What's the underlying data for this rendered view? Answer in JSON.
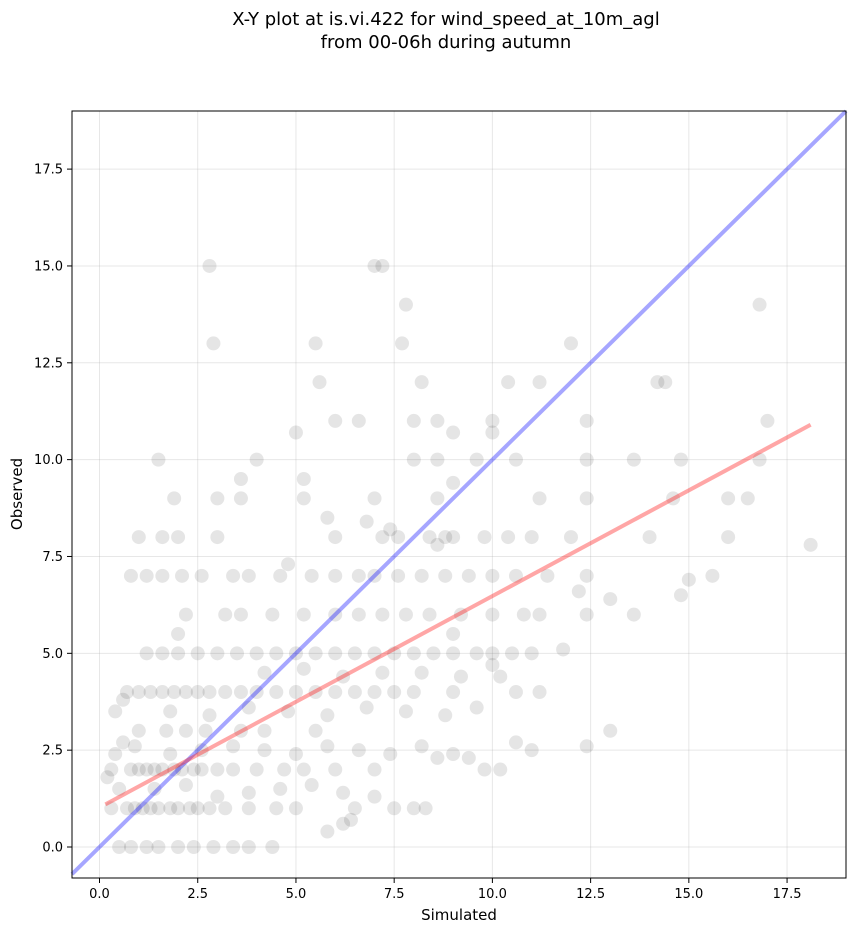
{
  "chart_data": {
    "type": "scatter",
    "title_lines": [
      "X-Y plot at is.vi.422 for wind_speed_at_10m_agl",
      "from 00-06h during autumn"
    ],
    "xlabel": "Simulated",
    "ylabel": "Observed",
    "xlim": [
      -0.7,
      19.0
    ],
    "ylim": [
      -0.8,
      19.0
    ],
    "xticks": [
      0.0,
      2.5,
      5.0,
      7.5,
      10.0,
      12.5,
      15.0,
      17.5
    ],
    "yticks": [
      0.0,
      2.5,
      5.0,
      7.5,
      10.0,
      12.5,
      15.0,
      17.5
    ],
    "xtick_labels": [
      "0.0",
      "2.5",
      "5.0",
      "7.5",
      "10.0",
      "12.5",
      "15.0",
      "17.5"
    ],
    "ytick_labels": [
      "0.0",
      "2.5",
      "5.0",
      "7.5",
      "10.0",
      "12.5",
      "15.0",
      "17.5"
    ],
    "grid": true,
    "point_color": "#000000",
    "point_alpha": 0.1,
    "reference_line": {
      "color": "#0000ff",
      "alpha": 0.35,
      "x": [
        -0.7,
        19.0
      ],
      "y": [
        -0.7,
        19.0
      ]
    },
    "regression_line": {
      "color": "#ff0000",
      "alpha": 0.35,
      "x": [
        0.15,
        18.1
      ],
      "y": [
        1.1,
        10.9
      ]
    },
    "points": [
      [
        0.2,
        1.8
      ],
      [
        0.3,
        1.0
      ],
      [
        0.3,
        2.0
      ],
      [
        0.4,
        3.5
      ],
      [
        0.4,
        2.4
      ],
      [
        0.5,
        1.5
      ],
      [
        0.5,
        0.0
      ],
      [
        0.6,
        3.8
      ],
      [
        0.6,
        2.7
      ],
      [
        0.7,
        1.0
      ],
      [
        0.8,
        2.0
      ],
      [
        0.9,
        1.0
      ],
      [
        1.0,
        2.0
      ],
      [
        1.0,
        3.0
      ],
      [
        1.1,
        1.0
      ],
      [
        1.2,
        2.0
      ],
      [
        1.3,
        1.0
      ],
      [
        1.4,
        2.0
      ],
      [
        1.5,
        1.0
      ],
      [
        1.6,
        2.0
      ],
      [
        1.7,
        3.0
      ],
      [
        1.8,
        1.0
      ],
      [
        1.9,
        2.0
      ],
      [
        2.0,
        1.0
      ],
      [
        2.1,
        2.0
      ],
      [
        2.2,
        3.0
      ],
      [
        2.3,
        1.0
      ],
      [
        2.4,
        2.0
      ],
      [
        2.5,
        1.0
      ],
      [
        2.6,
        2.0
      ],
      [
        2.7,
        3.0
      ],
      [
        2.8,
        1.0
      ],
      [
        3.0,
        2.0
      ],
      [
        3.2,
        1.0
      ],
      [
        3.4,
        2.0
      ],
      [
        3.6,
        3.0
      ],
      [
        3.8,
        1.0
      ],
      [
        4.0,
        2.0
      ],
      [
        4.2,
        3.0
      ],
      [
        4.5,
        1.0
      ],
      [
        4.7,
        2.0
      ],
      [
        5.0,
        1.0
      ],
      [
        5.2,
        2.0
      ],
      [
        5.5,
        3.0
      ],
      [
        6.0,
        2.0
      ],
      [
        6.5,
        1.0
      ],
      [
        7.0,
        2.0
      ],
      [
        7.5,
        1.0
      ],
      [
        8.0,
        1.0
      ],
      [
        8.3,
        1.0
      ],
      [
        0.7,
        4.0
      ],
      [
        1.0,
        4.0
      ],
      [
        1.3,
        4.0
      ],
      [
        1.6,
        4.0
      ],
      [
        1.9,
        4.0
      ],
      [
        2.2,
        4.0
      ],
      [
        2.5,
        4.0
      ],
      [
        2.8,
        4.0
      ],
      [
        3.2,
        4.0
      ],
      [
        3.6,
        4.0
      ],
      [
        4.0,
        4.0
      ],
      [
        4.5,
        4.0
      ],
      [
        5.0,
        4.0
      ],
      [
        5.5,
        4.0
      ],
      [
        6.0,
        4.0
      ],
      [
        6.5,
        4.0
      ],
      [
        7.0,
        4.0
      ],
      [
        7.5,
        4.0
      ],
      [
        8.0,
        4.0
      ],
      [
        9.0,
        4.0
      ],
      [
        1.2,
        5.0
      ],
      [
        1.6,
        5.0
      ],
      [
        2.0,
        5.0
      ],
      [
        2.5,
        5.0
      ],
      [
        3.0,
        5.0
      ],
      [
        3.5,
        5.0
      ],
      [
        4.0,
        5.0
      ],
      [
        4.5,
        5.0
      ],
      [
        5.0,
        5.0
      ],
      [
        5.5,
        5.0
      ],
      [
        6.0,
        5.0
      ],
      [
        6.5,
        5.0
      ],
      [
        7.0,
        5.0
      ],
      [
        7.5,
        5.0
      ],
      [
        8.0,
        5.0
      ],
      [
        8.5,
        5.0
      ],
      [
        9.0,
        5.0
      ],
      [
        10.0,
        5.0
      ],
      [
        10.5,
        5.0
      ],
      [
        11.0,
        5.0
      ],
      [
        2.2,
        6.0
      ],
      [
        3.2,
        6.0
      ],
      [
        3.6,
        6.0
      ],
      [
        4.4,
        6.0
      ],
      [
        5.2,
        6.0
      ],
      [
        6.0,
        6.0
      ],
      [
        6.6,
        6.0
      ],
      [
        7.2,
        6.0
      ],
      [
        7.8,
        6.0
      ],
      [
        8.4,
        6.0
      ],
      [
        9.2,
        6.0
      ],
      [
        10.0,
        6.0
      ],
      [
        10.8,
        6.0
      ],
      [
        11.2,
        6.0
      ],
      [
        12.4,
        6.0
      ],
      [
        13.6,
        6.0
      ],
      [
        0.8,
        7.0
      ],
      [
        1.2,
        7.0
      ],
      [
        1.6,
        7.0
      ],
      [
        2.1,
        7.0
      ],
      [
        2.6,
        7.0
      ],
      [
        3.4,
        7.0
      ],
      [
        3.8,
        7.0
      ],
      [
        4.6,
        7.0
      ],
      [
        5.4,
        7.0
      ],
      [
        6.0,
        7.0
      ],
      [
        6.6,
        7.0
      ],
      [
        7.0,
        7.0
      ],
      [
        7.6,
        7.0
      ],
      [
        8.2,
        7.0
      ],
      [
        8.8,
        7.0
      ],
      [
        9.4,
        7.0
      ],
      [
        10.0,
        7.0
      ],
      [
        10.6,
        7.0
      ],
      [
        11.4,
        7.0
      ],
      [
        12.4,
        7.0
      ],
      [
        15.0,
        6.9
      ],
      [
        15.6,
        7.0
      ],
      [
        1.0,
        8.0
      ],
      [
        1.6,
        8.0
      ],
      [
        2.0,
        8.0
      ],
      [
        3.0,
        8.0
      ],
      [
        6.0,
        8.0
      ],
      [
        7.2,
        8.0
      ],
      [
        7.6,
        8.0
      ],
      [
        8.4,
        8.0
      ],
      [
        8.8,
        8.0
      ],
      [
        9.8,
        8.0
      ],
      [
        10.4,
        8.0
      ],
      [
        11.0,
        8.0
      ],
      [
        12.0,
        8.0
      ],
      [
        14.0,
        8.0
      ],
      [
        16.0,
        8.0
      ],
      [
        18.1,
        7.8
      ],
      [
        1.9,
        9.0
      ],
      [
        3.0,
        9.0
      ],
      [
        3.6,
        9.0
      ],
      [
        5.2,
        9.0
      ],
      [
        7.0,
        9.0
      ],
      [
        8.6,
        9.0
      ],
      [
        11.2,
        9.0
      ],
      [
        12.4,
        9.0
      ],
      [
        14.6,
        9.0
      ],
      [
        16.0,
        9.0
      ],
      [
        16.5,
        9.0
      ],
      [
        14.8,
        6.5
      ],
      [
        12.2,
        6.6
      ],
      [
        13.0,
        6.4
      ],
      [
        1.5,
        10.0
      ],
      [
        4.0,
        10.0
      ],
      [
        8.0,
        10.0
      ],
      [
        8.6,
        10.0
      ],
      [
        9.6,
        10.0
      ],
      [
        10.6,
        10.0
      ],
      [
        12.4,
        10.0
      ],
      [
        13.6,
        10.0
      ],
      [
        14.8,
        10.0
      ],
      [
        16.8,
        10.0
      ],
      [
        5.0,
        10.7
      ],
      [
        9.0,
        10.7
      ],
      [
        10.0,
        10.7
      ],
      [
        6.0,
        11.0
      ],
      [
        6.6,
        11.0
      ],
      [
        8.0,
        11.0
      ],
      [
        8.6,
        11.0
      ],
      [
        10.0,
        11.0
      ],
      [
        12.4,
        11.0
      ],
      [
        17.0,
        11.0
      ],
      [
        10.4,
        12.0
      ],
      [
        11.2,
        12.0
      ],
      [
        14.2,
        12.0
      ],
      [
        14.4,
        12.0
      ],
      [
        5.6,
        12.0
      ],
      [
        8.2,
        12.0
      ],
      [
        2.9,
        13.0
      ],
      [
        5.5,
        13.0
      ],
      [
        7.7,
        13.0
      ],
      [
        12.0,
        13.0
      ],
      [
        7.8,
        14.0
      ],
      [
        16.8,
        14.0
      ],
      [
        2.8,
        15.0
      ],
      [
        7.0,
        15.0
      ],
      [
        7.2,
        15.0
      ],
      [
        0.8,
        0.0
      ],
      [
        1.2,
        0.0
      ],
      [
        1.5,
        0.0
      ],
      [
        2.0,
        0.0
      ],
      [
        2.4,
        0.0
      ],
      [
        2.9,
        0.0
      ],
      [
        3.4,
        0.0
      ],
      [
        3.8,
        0.0
      ],
      [
        4.4,
        0.0
      ],
      [
        1.4,
        1.5
      ],
      [
        2.2,
        1.6
      ],
      [
        3.0,
        1.3
      ],
      [
        3.8,
        1.4
      ],
      [
        4.6,
        1.5
      ],
      [
        5.4,
        1.6
      ],
      [
        6.2,
        1.4
      ],
      [
        0.9,
        2.6
      ],
      [
        1.8,
        2.4
      ],
      [
        2.6,
        2.5
      ],
      [
        3.4,
        2.6
      ],
      [
        4.2,
        2.5
      ],
      [
        5.0,
        2.4
      ],
      [
        5.8,
        2.6
      ],
      [
        6.6,
        2.5
      ],
      [
        7.4,
        2.4
      ],
      [
        8.2,
        2.6
      ],
      [
        9.0,
        2.4
      ],
      [
        9.8,
        2.0
      ],
      [
        10.2,
        2.0
      ],
      [
        10.6,
        2.7
      ],
      [
        11.0,
        2.5
      ],
      [
        12.4,
        2.6
      ],
      [
        13.0,
        3.0
      ],
      [
        1.8,
        3.5
      ],
      [
        2.8,
        3.4
      ],
      [
        3.8,
        3.6
      ],
      [
        4.8,
        3.5
      ],
      [
        5.8,
        3.4
      ],
      [
        6.8,
        3.6
      ],
      [
        7.8,
        3.5
      ],
      [
        8.8,
        3.4
      ],
      [
        9.6,
        3.6
      ],
      [
        4.2,
        4.5
      ],
      [
        5.2,
        4.6
      ],
      [
        6.2,
        4.4
      ],
      [
        7.2,
        4.5
      ],
      [
        8.2,
        4.5
      ],
      [
        9.2,
        4.4
      ],
      [
        10.2,
        4.4
      ],
      [
        10.6,
        4.0
      ],
      [
        11.2,
        4.0
      ],
      [
        5.8,
        0.4
      ],
      [
        6.2,
        0.6
      ],
      [
        6.4,
        0.7
      ],
      [
        7.0,
        1.3
      ],
      [
        8.6,
        2.3
      ],
      [
        9.4,
        2.3
      ],
      [
        10.0,
        4.7
      ],
      [
        11.8,
        5.1
      ],
      [
        2.0,
        5.5
      ],
      [
        9.0,
        5.5
      ],
      [
        9.6,
        5.0
      ],
      [
        3.6,
        9.5
      ],
      [
        5.2,
        9.5
      ],
      [
        9.0,
        8.0
      ],
      [
        7.4,
        8.2
      ],
      [
        4.8,
        7.3
      ],
      [
        5.8,
        8.5
      ],
      [
        6.8,
        8.4
      ],
      [
        8.6,
        7.8
      ],
      [
        9.0,
        9.4
      ]
    ]
  }
}
